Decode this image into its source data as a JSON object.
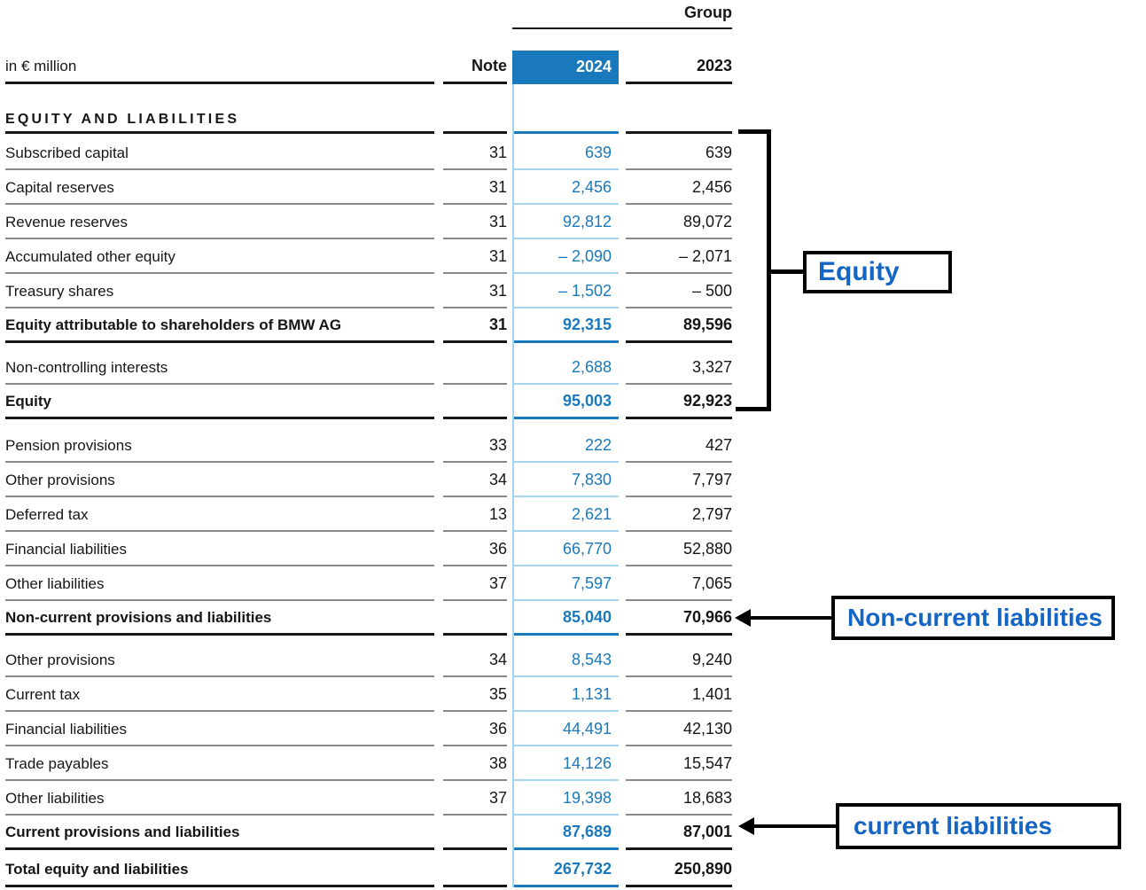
{
  "header": {
    "group": "Group",
    "unit": "in € million",
    "note": "Note",
    "year_current": "2024",
    "year_prior": "2023"
  },
  "section": {
    "title": "EQUITY AND LIABILITIES"
  },
  "rows": [
    {
      "label": "Subscribed capital",
      "note": "31",
      "y2024": "639",
      "y2023": "639",
      "style": "normal",
      "gap": 4
    },
    {
      "label": "Capital reserves",
      "note": "31",
      "y2024": "2,456",
      "y2023": "2,456",
      "style": "normal",
      "gap": 0
    },
    {
      "label": "Revenue reserves",
      "note": "31",
      "y2024": "92,812",
      "y2023": "89,072",
      "style": "normal",
      "gap": 0
    },
    {
      "label": "Accumulated other equity",
      "note": "31",
      "y2024": "– 2,090",
      "y2023": "– 2,071",
      "style": "normal",
      "gap": 0
    },
    {
      "label": "Treasury shares",
      "note": "31",
      "y2024": "– 1,502",
      "y2023": "– 500",
      "style": "normal",
      "gap": 0
    },
    {
      "label": "Equity attributable to shareholders of BMW AG",
      "note": "31",
      "y2024": "92,315",
      "y2023": "89,596",
      "style": "bold",
      "gap": 0
    },
    {
      "label": "Non-controlling interests",
      "note": "",
      "y2024": "2,688",
      "y2023": "3,327",
      "style": "normal",
      "gap": 8
    },
    {
      "label": "Equity",
      "note": "",
      "y2024": "95,003",
      "y2023": "92,923",
      "style": "bold",
      "gap": 0
    },
    {
      "label": "Pension provisions",
      "note": "33",
      "y2024": "222",
      "y2023": "427",
      "style": "normal",
      "gap": 10
    },
    {
      "label": "Other provisions",
      "note": "34",
      "y2024": "7,830",
      "y2023": "7,797",
      "style": "normal",
      "gap": 0
    },
    {
      "label": "Deferred tax",
      "note": "13",
      "y2024": "2,621",
      "y2023": "2,797",
      "style": "normal",
      "gap": 0
    },
    {
      "label": "Financial liabilities",
      "note": "36",
      "y2024": "66,770",
      "y2023": "52,880",
      "style": "normal",
      "gap": 0
    },
    {
      "label": "Other liabilities",
      "note": "37",
      "y2024": "7,597",
      "y2023": "7,065",
      "style": "normal",
      "gap": 0
    },
    {
      "label": "Non-current provisions and liabilities",
      "note": "",
      "y2024": "85,040",
      "y2023": "70,966",
      "style": "bold",
      "gap": 0
    },
    {
      "label": "Other provisions",
      "note": "34",
      "y2024": "8,543",
      "y2023": "9,240",
      "style": "normal",
      "gap": 8
    },
    {
      "label": "Current tax",
      "note": "35",
      "y2024": "1,131",
      "y2023": "1,401",
      "style": "normal",
      "gap": 0
    },
    {
      "label": "Financial liabilities",
      "note": "36",
      "y2024": "44,491",
      "y2023": "42,130",
      "style": "normal",
      "gap": 0
    },
    {
      "label": "Trade payables",
      "note": "38",
      "y2024": "14,126",
      "y2023": "15,547",
      "style": "normal",
      "gap": 0
    },
    {
      "label": "Other liabilities",
      "note": "37",
      "y2024": "19,398",
      "y2023": "18,683",
      "style": "normal",
      "gap": 0
    },
    {
      "label": "Current provisions and liabilities",
      "note": "",
      "y2024": "87,689",
      "y2023": "87,001",
      "style": "bold",
      "gap": 0
    },
    {
      "label": "Total equity and liabilities",
      "note": "",
      "y2024": "267,732",
      "y2023": "250,890",
      "style": "bold",
      "gap": 3
    }
  ],
  "annotations": {
    "equity": "Equity",
    "non_current": "Non-current liabilities",
    "current": "current liabilities"
  },
  "colors": {
    "accent_blue": "#1a79bd",
    "light_blue": "#a8d4ef",
    "line_gray": "#8a8a8a",
    "line_black": "#161616",
    "annotation_blue": "#1565c4"
  }
}
